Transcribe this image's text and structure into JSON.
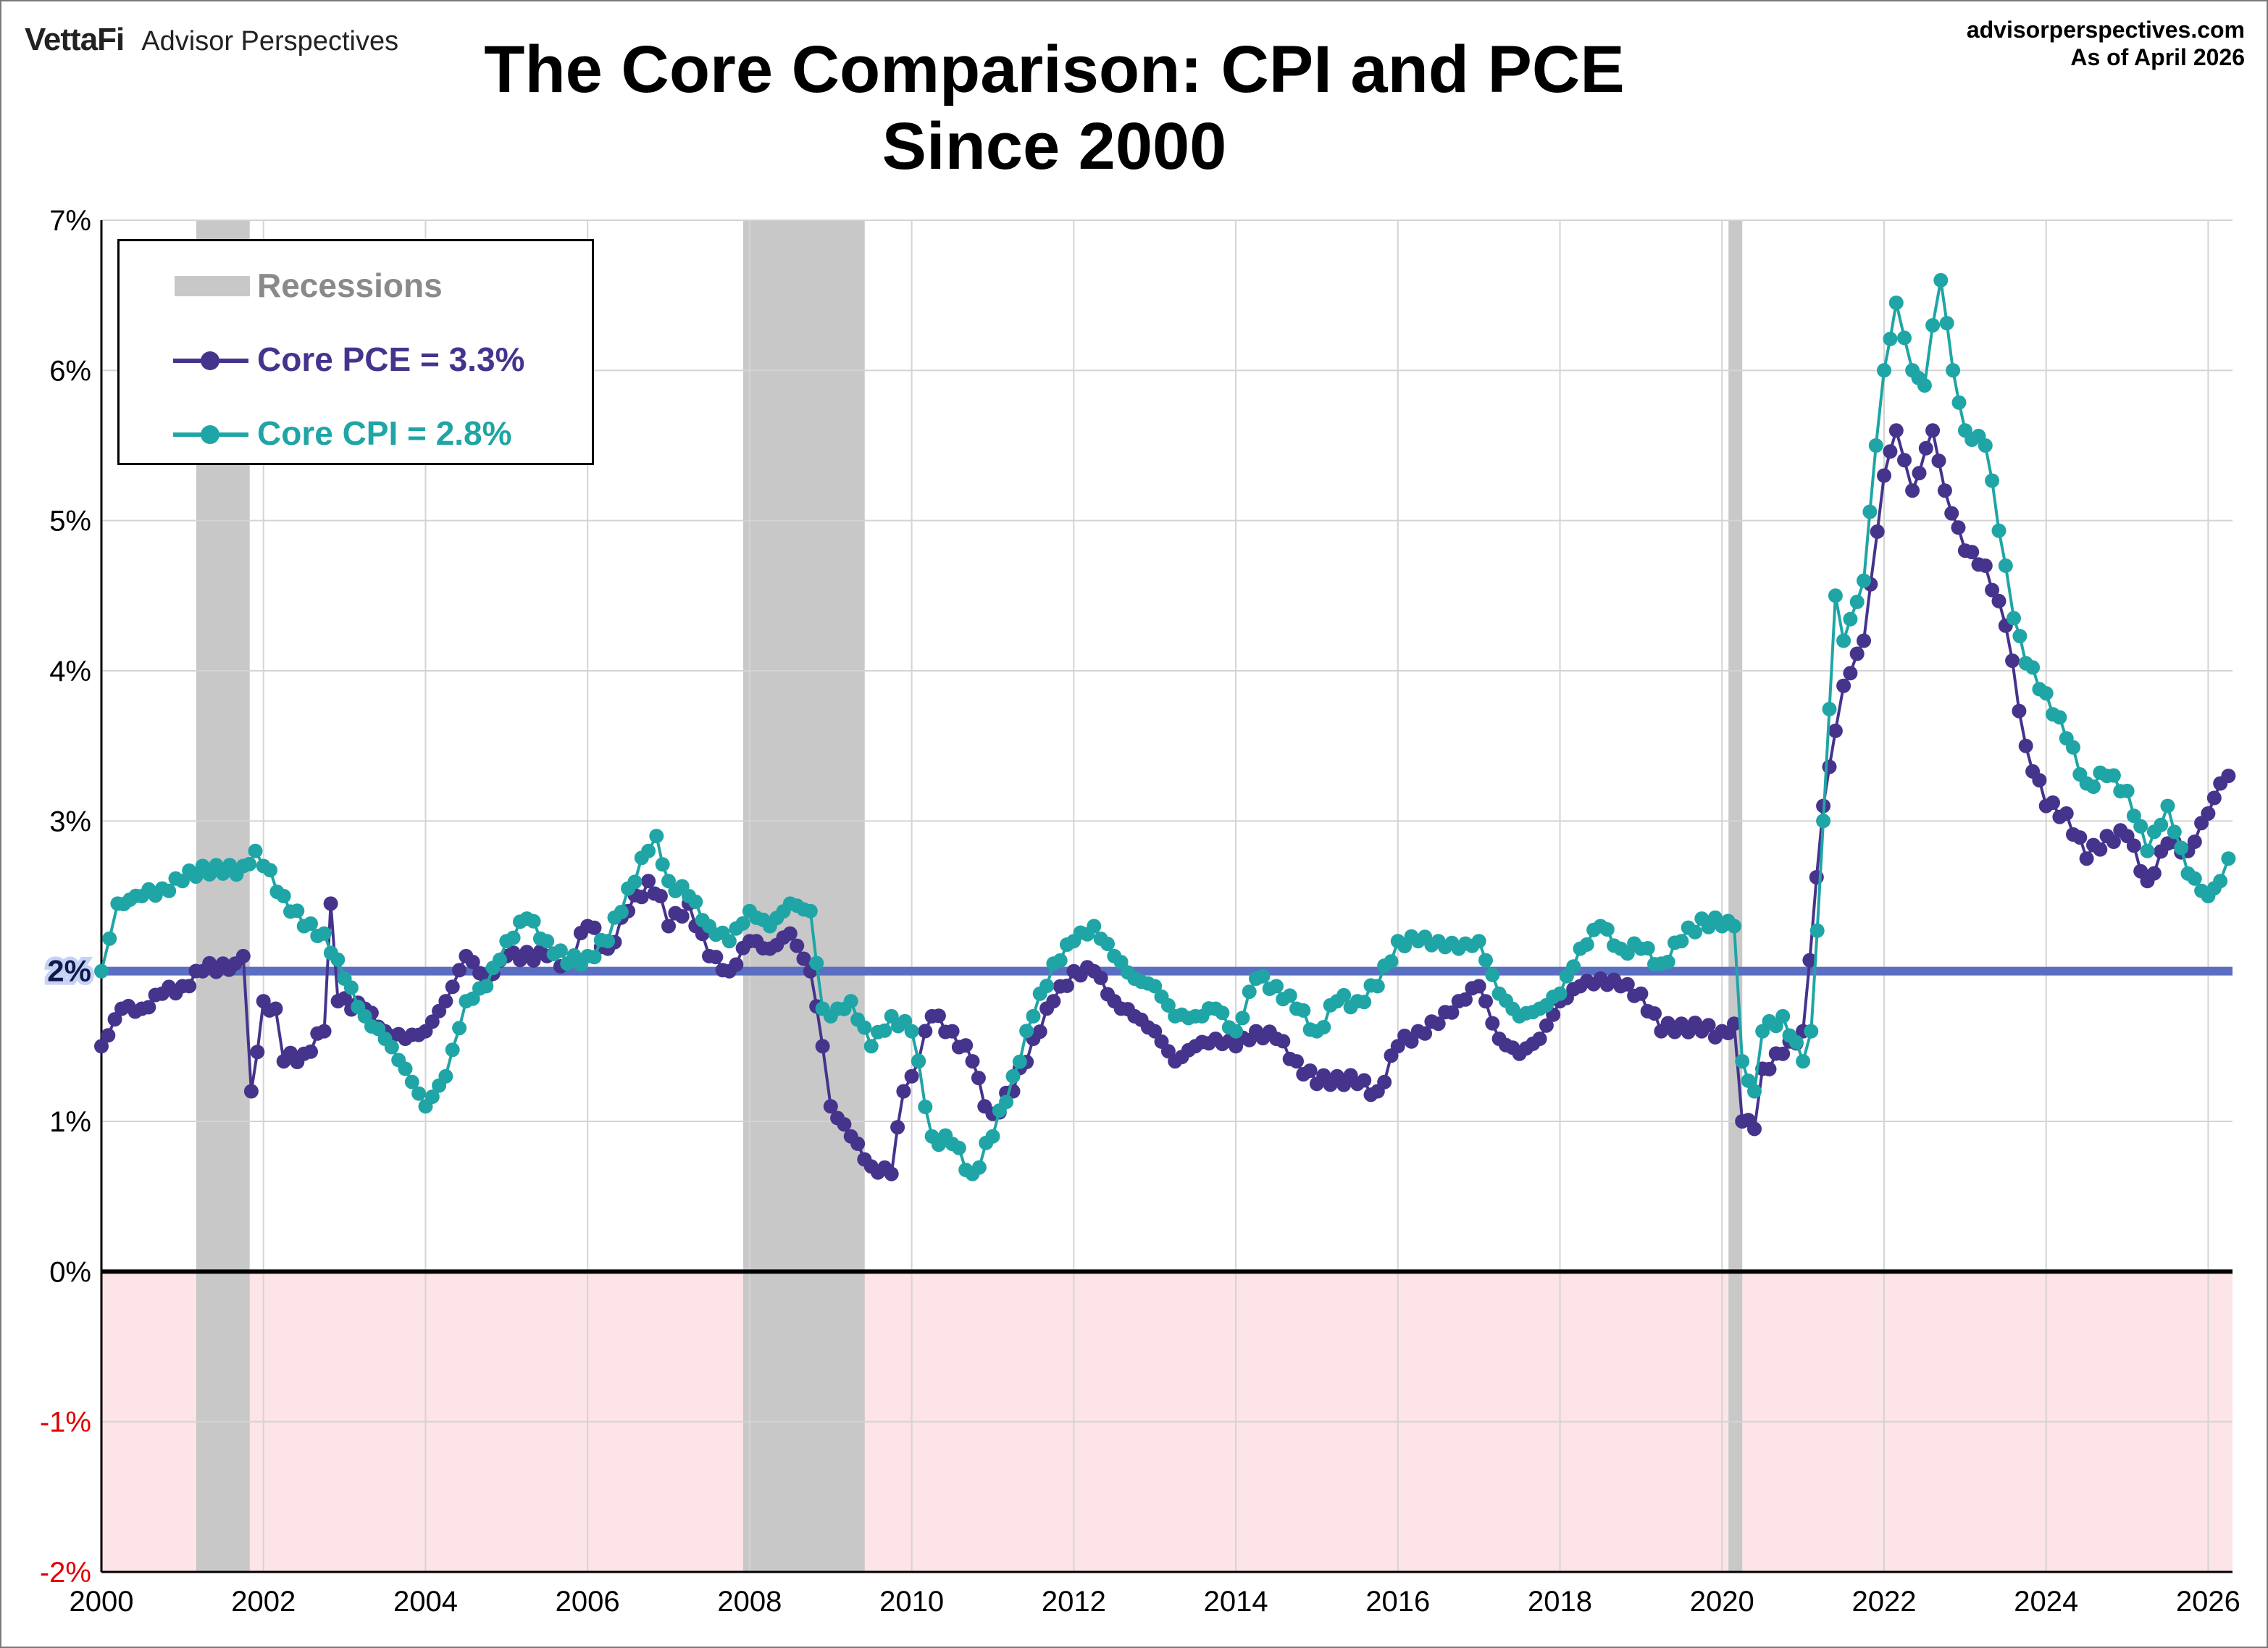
{
  "brand": {
    "name": "VettaFi",
    "sub": "Advisor Perspectives"
  },
  "site": {
    "url": "advisorperspectives.com",
    "asof": "As of April 2026"
  },
  "title": {
    "line1": "The Core Comparison: CPI and PCE",
    "line2": "Since 2000"
  },
  "legend": {
    "recessions": "Recessions",
    "pce": "Core PCE = 3.3%",
    "cpi": "Core CPI =  2.8%"
  },
  "colors": {
    "pce": "#46338c",
    "cpi": "#1fa5a5",
    "recession": "#c8c8c8",
    "negative_zone": "#fde4e6",
    "target_line": "#5b6fc2",
    "negative_tick": "#e00000"
  },
  "chart_data": {
    "type": "line",
    "title": "The Core Comparison: CPI and PCE Since 2000",
    "xlim": [
      2000,
      2026.3
    ],
    "ylim": [
      -2,
      7
    ],
    "y_ticks": [
      -2,
      -1,
      0,
      1,
      2,
      3,
      4,
      5,
      6,
      7
    ],
    "y_tick_labels": [
      "-2%",
      "-1%",
      "0%",
      "1%",
      "2%",
      "3%",
      "4%",
      "5%",
      "6%",
      "7%"
    ],
    "x_ticks": [
      2000,
      2002,
      2004,
      2006,
      2008,
      2010,
      2012,
      2014,
      2016,
      2018,
      2020,
      2022,
      2024,
      2026
    ],
    "x_tick_labels": [
      "2000",
      "2002",
      "2004",
      "2006",
      "2008",
      "2010",
      "2012",
      "2014",
      "2016",
      "2018",
      "2020",
      "2022",
      "2024",
      "2026"
    ],
    "target_line": {
      "value": 2,
      "label": "2%"
    },
    "grid": true,
    "legend_position": "top-left",
    "recessions": [
      [
        2001.17,
        2001.83
      ],
      [
        2007.92,
        2009.42
      ],
      [
        2020.08,
        2020.25
      ]
    ],
    "series": [
      {
        "name": "Core PCE",
        "anchors": [
          [
            2000.0,
            1.5
          ],
          [
            2000.25,
            1.75
          ],
          [
            2000.5,
            1.75
          ],
          [
            2000.75,
            1.85
          ],
          [
            2001.0,
            1.9
          ],
          [
            2001.25,
            2.0
          ],
          [
            2001.5,
            2.05
          ],
          [
            2001.65,
            2.05
          ],
          [
            2001.75,
            2.1
          ],
          [
            2001.85,
            1.2
          ],
          [
            2002.0,
            1.8
          ],
          [
            2002.15,
            1.75
          ],
          [
            2002.25,
            1.4
          ],
          [
            2002.5,
            1.45
          ],
          [
            2002.75,
            1.6
          ],
          [
            2002.83,
            2.45
          ],
          [
            2002.92,
            1.8
          ],
          [
            2003.25,
            1.75
          ],
          [
            2003.5,
            1.6
          ],
          [
            2003.75,
            1.55
          ],
          [
            2004.0,
            1.6
          ],
          [
            2004.25,
            1.8
          ],
          [
            2004.5,
            2.1
          ],
          [
            2004.75,
            1.95
          ],
          [
            2005.0,
            2.1
          ],
          [
            2005.5,
            2.1
          ],
          [
            2005.75,
            2.05
          ],
          [
            2006.0,
            2.3
          ],
          [
            2006.25,
            2.15
          ],
          [
            2006.5,
            2.4
          ],
          [
            2006.75,
            2.6
          ],
          [
            2006.9,
            2.5
          ],
          [
            2007.0,
            2.3
          ],
          [
            2007.25,
            2.45
          ],
          [
            2007.5,
            2.1
          ],
          [
            2007.75,
            2.0
          ],
          [
            2008.0,
            2.2
          ],
          [
            2008.25,
            2.15
          ],
          [
            2008.5,
            2.25
          ],
          [
            2008.75,
            2.0
          ],
          [
            2008.9,
            1.5
          ],
          [
            2009.0,
            1.1
          ],
          [
            2009.25,
            0.9
          ],
          [
            2009.5,
            0.7
          ],
          [
            2009.75,
            0.65
          ],
          [
            2009.9,
            1.2
          ],
          [
            2010.0,
            1.3
          ],
          [
            2010.25,
            1.7
          ],
          [
            2010.5,
            1.6
          ],
          [
            2010.75,
            1.4
          ],
          [
            2010.9,
            1.1
          ],
          [
            2011.0,
            1.05
          ],
          [
            2011.25,
            1.2
          ],
          [
            2011.5,
            1.55
          ],
          [
            2011.75,
            1.8
          ],
          [
            2012.0,
            2.0
          ],
          [
            2012.25,
            2.0
          ],
          [
            2012.5,
            1.8
          ],
          [
            2012.75,
            1.7
          ],
          [
            2013.0,
            1.6
          ],
          [
            2013.25,
            1.4
          ],
          [
            2013.5,
            1.5
          ],
          [
            2013.75,
            1.55
          ],
          [
            2014.0,
            1.5
          ],
          [
            2014.25,
            1.6
          ],
          [
            2014.5,
            1.55
          ],
          [
            2014.75,
            1.4
          ],
          [
            2015.0,
            1.25
          ],
          [
            2015.25,
            1.3
          ],
          [
            2015.5,
            1.25
          ],
          [
            2015.75,
            1.2
          ],
          [
            2016.0,
            1.5
          ],
          [
            2016.25,
            1.6
          ],
          [
            2016.5,
            1.65
          ],
          [
            2016.75,
            1.8
          ],
          [
            2017.0,
            1.9
          ],
          [
            2017.25,
            1.55
          ],
          [
            2017.5,
            1.45
          ],
          [
            2017.75,
            1.55
          ],
          [
            2018.0,
            1.8
          ],
          [
            2018.25,
            1.9
          ],
          [
            2018.5,
            1.95
          ],
          [
            2018.75,
            1.9
          ],
          [
            2019.0,
            1.85
          ],
          [
            2019.25,
            1.6
          ],
          [
            2019.5,
            1.65
          ],
          [
            2019.75,
            1.6
          ],
          [
            2020.0,
            1.6
          ],
          [
            2020.15,
            1.65
          ],
          [
            2020.25,
            1.0
          ],
          [
            2020.4,
            0.95
          ],
          [
            2020.5,
            1.35
          ],
          [
            2020.75,
            1.45
          ],
          [
            2021.0,
            1.6
          ],
          [
            2021.25,
            3.1
          ],
          [
            2021.4,
            3.6
          ],
          [
            2021.5,
            3.9
          ],
          [
            2021.75,
            4.2
          ],
          [
            2022.0,
            5.3
          ],
          [
            2022.15,
            5.6
          ],
          [
            2022.35,
            5.2
          ],
          [
            2022.6,
            5.6
          ],
          [
            2022.75,
            5.2
          ],
          [
            2023.0,
            4.8
          ],
          [
            2023.25,
            4.7
          ],
          [
            2023.5,
            4.3
          ],
          [
            2023.75,
            3.5
          ],
          [
            2024.0,
            3.1
          ],
          [
            2024.25,
            3.05
          ],
          [
            2024.5,
            2.75
          ],
          [
            2024.75,
            2.9
          ],
          [
            2025.0,
            2.9
          ],
          [
            2025.25,
            2.6
          ],
          [
            2025.5,
            2.85
          ],
          [
            2025.75,
            2.8
          ],
          [
            2026.0,
            3.05
          ],
          [
            2026.15,
            3.25
          ],
          [
            2026.25,
            3.3
          ]
        ]
      },
      {
        "name": "Core CPI",
        "anchors": [
          [
            2000.0,
            2.0
          ],
          [
            2000.2,
            2.45
          ],
          [
            2000.5,
            2.5
          ],
          [
            2000.75,
            2.55
          ],
          [
            2001.0,
            2.6
          ],
          [
            2001.25,
            2.7
          ],
          [
            2001.5,
            2.65
          ],
          [
            2001.75,
            2.7
          ],
          [
            2001.9,
            2.8
          ],
          [
            2002.0,
            2.7
          ],
          [
            2002.25,
            2.5
          ],
          [
            2002.5,
            2.3
          ],
          [
            2002.75,
            2.25
          ],
          [
            2003.0,
            1.95
          ],
          [
            2003.25,
            1.7
          ],
          [
            2003.5,
            1.55
          ],
          [
            2003.75,
            1.35
          ],
          [
            2004.0,
            1.1
          ],
          [
            2004.25,
            1.3
          ],
          [
            2004.5,
            1.8
          ],
          [
            2004.75,
            1.9
          ],
          [
            2005.0,
            2.2
          ],
          [
            2005.25,
            2.35
          ],
          [
            2005.5,
            2.2
          ],
          [
            2005.75,
            2.05
          ],
          [
            2006.0,
            2.1
          ],
          [
            2006.25,
            2.2
          ],
          [
            2006.5,
            2.55
          ],
          [
            2006.75,
            2.8
          ],
          [
            2006.85,
            2.9
          ],
          [
            2007.0,
            2.6
          ],
          [
            2007.25,
            2.5
          ],
          [
            2007.5,
            2.3
          ],
          [
            2007.75,
            2.2
          ],
          [
            2008.0,
            2.4
          ],
          [
            2008.25,
            2.3
          ],
          [
            2008.5,
            2.45
          ],
          [
            2008.75,
            2.4
          ],
          [
            2008.9,
            1.75
          ],
          [
            2009.0,
            1.7
          ],
          [
            2009.25,
            1.8
          ],
          [
            2009.5,
            1.5
          ],
          [
            2009.75,
            1.7
          ],
          [
            2010.0,
            1.6
          ],
          [
            2010.25,
            0.9
          ],
          [
            2010.5,
            0.85
          ],
          [
            2010.75,
            0.65
          ],
          [
            2011.0,
            0.9
          ],
          [
            2011.25,
            1.3
          ],
          [
            2011.5,
            1.7
          ],
          [
            2011.75,
            2.05
          ],
          [
            2012.0,
            2.2
          ],
          [
            2012.25,
            2.3
          ],
          [
            2012.5,
            2.1
          ],
          [
            2012.75,
            1.95
          ],
          [
            2013.0,
            1.9
          ],
          [
            2013.25,
            1.7
          ],
          [
            2013.5,
            1.7
          ],
          [
            2013.75,
            1.75
          ],
          [
            2014.0,
            1.6
          ],
          [
            2014.25,
            1.95
          ],
          [
            2014.5,
            1.9
          ],
          [
            2014.75,
            1.75
          ],
          [
            2015.0,
            1.6
          ],
          [
            2015.25,
            1.8
          ],
          [
            2015.5,
            1.8
          ],
          [
            2015.75,
            1.9
          ],
          [
            2016.0,
            2.2
          ],
          [
            2016.25,
            2.2
          ],
          [
            2016.5,
            2.2
          ],
          [
            2016.75,
            2.15
          ],
          [
            2017.0,
            2.2
          ],
          [
            2017.25,
            1.85
          ],
          [
            2017.5,
            1.7
          ],
          [
            2017.75,
            1.75
          ],
          [
            2018.0,
            1.85
          ],
          [
            2018.25,
            2.15
          ],
          [
            2018.5,
            2.3
          ],
          [
            2018.75,
            2.15
          ],
          [
            2019.0,
            2.15
          ],
          [
            2019.25,
            2.05
          ],
          [
            2019.5,
            2.2
          ],
          [
            2019.75,
            2.35
          ],
          [
            2020.0,
            2.3
          ],
          [
            2020.15,
            2.3
          ],
          [
            2020.25,
            1.4
          ],
          [
            2020.4,
            1.2
          ],
          [
            2020.5,
            1.6
          ],
          [
            2020.75,
            1.7
          ],
          [
            2021.0,
            1.4
          ],
          [
            2021.1,
            1.6
          ],
          [
            2021.25,
            3.0
          ],
          [
            2021.4,
            4.5
          ],
          [
            2021.5,
            4.2
          ],
          [
            2021.75,
            4.6
          ],
          [
            2021.9,
            5.5
          ],
          [
            2022.0,
            6.0
          ],
          [
            2022.15,
            6.45
          ],
          [
            2022.35,
            6.0
          ],
          [
            2022.5,
            5.9
          ],
          [
            2022.6,
            6.3
          ],
          [
            2022.7,
            6.6
          ],
          [
            2022.85,
            6.0
          ],
          [
            2023.0,
            5.6
          ],
          [
            2023.25,
            5.5
          ],
          [
            2023.5,
            4.7
          ],
          [
            2023.6,
            4.35
          ],
          [
            2023.75,
            4.05
          ],
          [
            2024.0,
            3.85
          ],
          [
            2024.25,
            3.55
          ],
          [
            2024.5,
            3.25
          ],
          [
            2024.75,
            3.3
          ],
          [
            2025.0,
            3.2
          ],
          [
            2025.25,
            2.8
          ],
          [
            2025.5,
            3.1
          ],
          [
            2025.75,
            2.65
          ],
          [
            2026.0,
            2.5
          ],
          [
            2026.15,
            2.6
          ],
          [
            2026.25,
            2.75
          ]
        ]
      }
    ]
  }
}
